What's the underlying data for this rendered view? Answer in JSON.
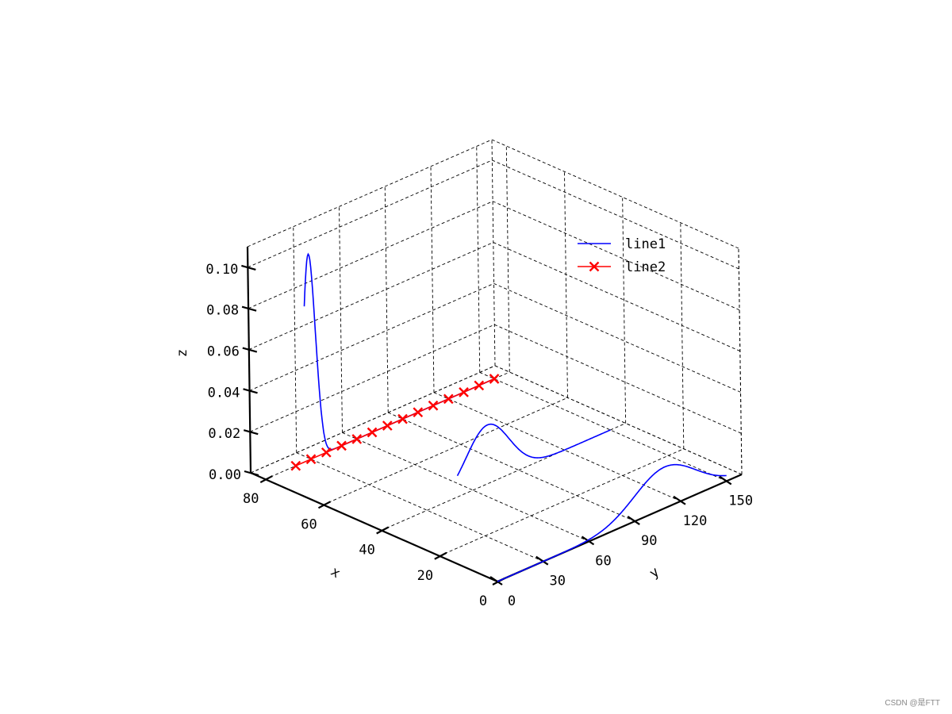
{
  "chart_data": {
    "type": "line",
    "projection": "3d",
    "title": "",
    "xlabel": "x",
    "ylabel": "y",
    "zlabel": "z",
    "xlim": [
      0,
      85
    ],
    "ylim": [
      0,
      160
    ],
    "zlim": [
      0,
      0.11
    ],
    "xticks": [
      "0",
      "20",
      "40",
      "60",
      "80"
    ],
    "xtick_values": [
      0,
      20,
      40,
      60,
      80
    ],
    "yticks": [
      "0",
      "30",
      "60",
      "90",
      "120",
      "150"
    ],
    "ytick_values": [
      0,
      30,
      60,
      90,
      120,
      150
    ],
    "zticks": [
      "0.00",
      "0.02",
      "0.04",
      "0.06",
      "0.08",
      "0.10"
    ],
    "ztick_values": [
      0,
      0.02,
      0.04,
      0.06,
      0.08,
      0.1
    ],
    "grid": true,
    "grid_style": "dashed",
    "legend_position": "upper-right",
    "series": [
      {
        "name": "line1",
        "color": "#0000ff",
        "marker": "none",
        "curves": [
          {
            "x": 80,
            "mean": 30,
            "sd": 4,
            "y_range": [
              27,
              150
            ]
          },
          {
            "x": 40,
            "mean": 70,
            "sd": 14,
            "y_range": [
              50,
              150
            ]
          },
          {
            "x": 0,
            "mean": 110,
            "sd": 20,
            "y_range": [
              0,
              150
            ]
          }
        ]
      },
      {
        "name": "line2",
        "color": "#ff0000",
        "marker": "x",
        "points": [
          {
            "x": 80,
            "y": 20,
            "z": 0
          },
          {
            "x": 80,
            "y": 30,
            "z": 0
          },
          {
            "x": 80,
            "y": 40,
            "z": 0
          },
          {
            "x": 80,
            "y": 50,
            "z": 0
          },
          {
            "x": 80,
            "y": 60,
            "z": 0
          },
          {
            "x": 80,
            "y": 70,
            "z": 0
          },
          {
            "x": 80,
            "y": 80,
            "z": 0
          },
          {
            "x": 80,
            "y": 90,
            "z": 0
          },
          {
            "x": 80,
            "y": 100,
            "z": 0
          },
          {
            "x": 80,
            "y": 110,
            "z": 0
          },
          {
            "x": 80,
            "y": 120,
            "z": 0
          },
          {
            "x": 80,
            "y": 130,
            "z": 0
          },
          {
            "x": 80,
            "y": 140,
            "z": 0
          },
          {
            "x": 80,
            "y": 150,
            "z": 0
          }
        ]
      }
    ]
  },
  "watermark": "CSDN @是FTT"
}
